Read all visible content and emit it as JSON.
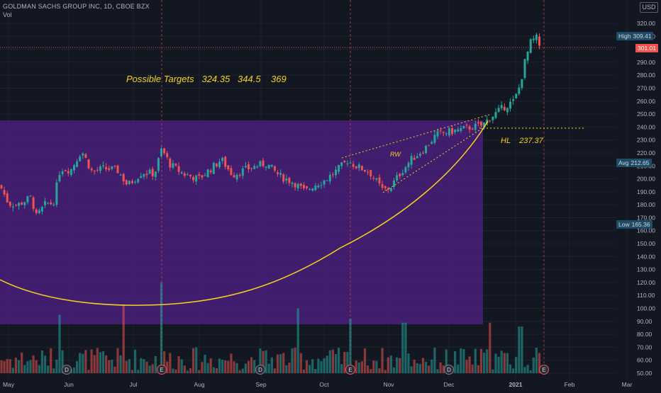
{
  "header": {
    "symbol": "GOLDMAN SACHS GROUP INC, 1D, Cboe BZX",
    "volume_label": "Vol",
    "currency": "USD"
  },
  "annotations": {
    "targets": "Possible Targets   324.35   344.5    369",
    "rw": "RW",
    "hl": "HL    237.37"
  },
  "price_tags": {
    "high_label": "High",
    "high_value": "309.41",
    "last_value": "301.01",
    "avg_label": "Avg",
    "avg_value": "212.65",
    "low_label": "Low",
    "low_value": "165.36"
  },
  "x_axis_labels": [
    "May",
    "Jun",
    "Jul",
    "Aug",
    "Sep",
    "Oct",
    "Nov",
    "Dec",
    "2021",
    "Feb",
    "Mar"
  ],
  "y_axis_labels": [
    "320.00",
    "310.00",
    "300.00",
    "290.00",
    "280.00",
    "270.00",
    "260.00",
    "250.00",
    "240.00",
    "230.00",
    "220.00",
    "210.00",
    "200.00",
    "190.00",
    "180.00",
    "170.00",
    "160.00",
    "150.00",
    "140.00",
    "130.00",
    "120.00",
    "110.00",
    "100.00",
    "90.00",
    "80.00",
    "70.00",
    "60.00",
    "50.00"
  ],
  "event_markers": [
    "D",
    "E",
    "D",
    "E",
    "D",
    "E"
  ],
  "colors": {
    "background": "#131722",
    "up": "#26a69a",
    "down": "#ef5350",
    "zone": "#4a1f7a",
    "annotation": "#f5d21f",
    "grid": "#1e222d"
  },
  "chart_data": {
    "type": "candlestick",
    "title": "GOLDMAN SACHS GROUP INC, 1D, Cboe BZX",
    "ylim": [
      47,
      327
    ],
    "stats": {
      "high": 309.41,
      "last": 301.01,
      "avg": 212.65,
      "low": 165.36
    },
    "targets": [
      324.35,
      344.5,
      369
    ],
    "hl": 237.37,
    "close_waypoints": [
      {
        "x": 0,
        "y": 195
      },
      {
        "x": 12,
        "y": 181
      },
      {
        "x": 25,
        "y": 180
      },
      {
        "x": 45,
        "y": 186
      },
      {
        "x": 50,
        "y": 170
      },
      {
        "x": 65,
        "y": 181
      },
      {
        "x": 75,
        "y": 181
      },
      {
        "x": 85,
        "y": 208
      },
      {
        "x": 100,
        "y": 207
      },
      {
        "x": 115,
        "y": 222
      },
      {
        "x": 130,
        "y": 205
      },
      {
        "x": 145,
        "y": 208
      },
      {
        "x": 165,
        "y": 207
      },
      {
        "x": 180,
        "y": 195
      },
      {
        "x": 200,
        "y": 205
      },
      {
        "x": 218,
        "y": 204
      },
      {
        "x": 228,
        "y": 223
      },
      {
        "x": 240,
        "y": 211
      },
      {
        "x": 258,
        "y": 204
      },
      {
        "x": 280,
        "y": 200
      },
      {
        "x": 300,
        "y": 209
      },
      {
        "x": 312,
        "y": 215
      },
      {
        "x": 328,
        "y": 203
      },
      {
        "x": 350,
        "y": 208
      },
      {
        "x": 375,
        "y": 212
      },
      {
        "x": 395,
        "y": 202
      },
      {
        "x": 415,
        "y": 197
      },
      {
        "x": 430,
        "y": 190
      },
      {
        "x": 442,
        "y": 195
      },
      {
        "x": 458,
        "y": 199
      },
      {
        "x": 472,
        "y": 205
      },
      {
        "x": 490,
        "y": 214
      },
      {
        "x": 505,
        "y": 209
      },
      {
        "x": 520,
        "y": 206
      },
      {
        "x": 540,
        "y": 191
      },
      {
        "x": 550,
        "y": 193
      },
      {
        "x": 565,
        "y": 205
      },
      {
        "x": 580,
        "y": 215
      },
      {
        "x": 600,
        "y": 224
      },
      {
        "x": 615,
        "y": 234
      },
      {
        "x": 630,
        "y": 236
      },
      {
        "x": 650,
        "y": 238
      },
      {
        "x": 665,
        "y": 240
      },
      {
        "x": 680,
        "y": 241
      },
      {
        "x": 690,
        "y": 247
      },
      {
        "x": 700,
        "y": 251
      },
      {
        "x": 712,
        "y": 256
      },
      {
        "x": 725,
        "y": 260
      },
      {
        "x": 733,
        "y": 272
      },
      {
        "x": 740,
        "y": 290
      },
      {
        "x": 748,
        "y": 305
      },
      {
        "x": 756,
        "y": 309
      },
      {
        "x": 762,
        "y": 301
      }
    ],
    "volume": {
      "baseline": 52,
      "spikes": [
        {
          "x": 83,
          "v": 95
        },
        {
          "x": 176,
          "v": 103
        },
        {
          "x": 228,
          "v": 120
        },
        {
          "x": 420,
          "v": 100
        },
        {
          "x": 494,
          "v": 92
        },
        {
          "x": 570,
          "v": 89
        },
        {
          "x": 690,
          "v": 89
        },
        {
          "x": 734,
          "v": 86
        }
      ]
    }
  }
}
